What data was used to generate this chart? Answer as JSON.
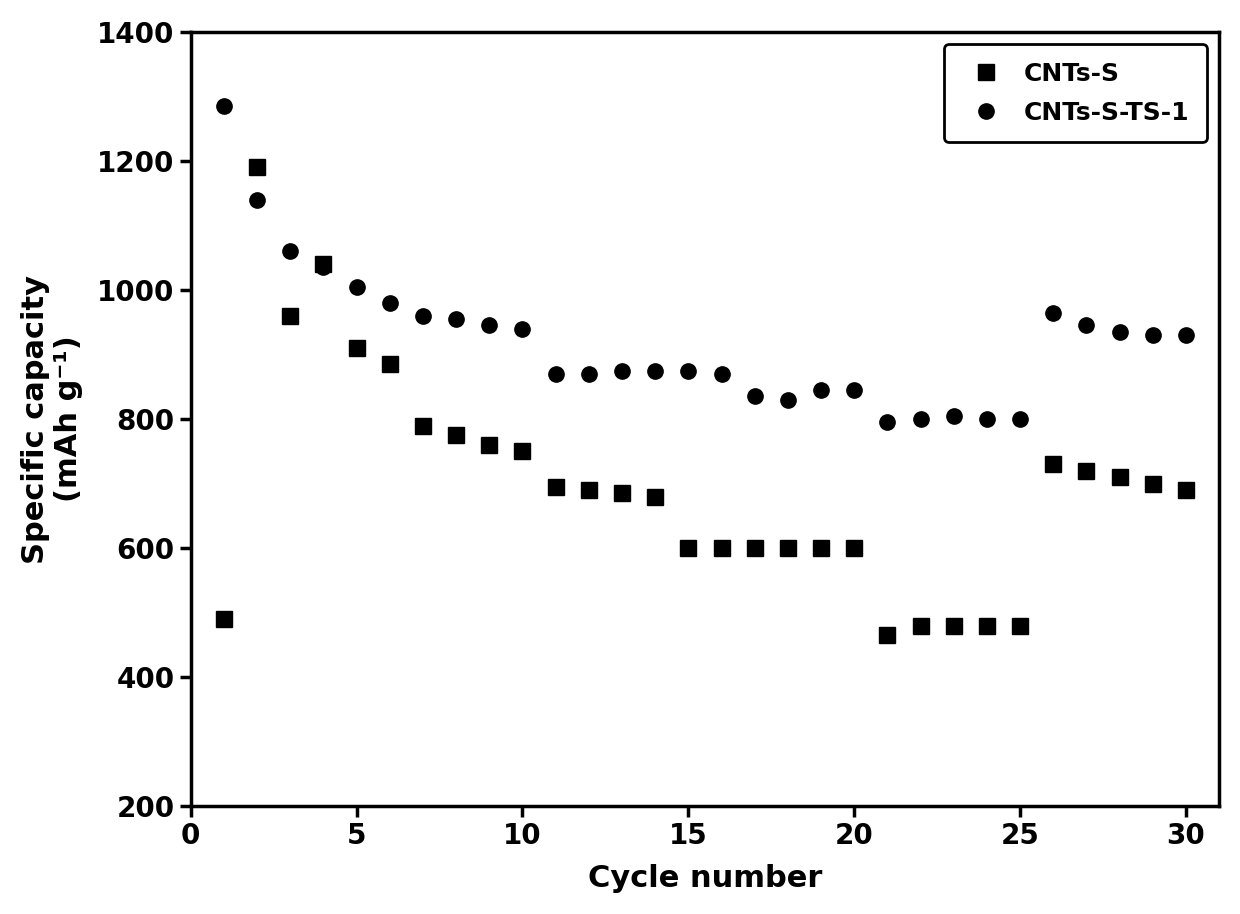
{
  "CNTs_S_x": [
    1,
    2,
    3,
    4,
    5,
    6,
    7,
    8,
    9,
    10,
    11,
    12,
    13,
    14,
    15,
    16,
    17,
    18,
    19,
    20,
    21,
    22,
    23,
    24,
    25,
    26,
    27,
    28,
    29,
    30
  ],
  "CNTs_S_y": [
    490,
    1190,
    960,
    1040,
    910,
    885,
    790,
    775,
    760,
    750,
    695,
    690,
    685,
    680,
    600,
    600,
    600,
    600,
    600,
    600,
    465,
    480,
    480,
    480,
    480,
    730,
    720,
    710,
    700,
    690
  ],
  "CNTs_S_TS1_x": [
    1,
    2,
    3,
    4,
    5,
    6,
    7,
    8,
    9,
    10,
    11,
    12,
    13,
    14,
    15,
    16,
    17,
    18,
    19,
    20,
    21,
    22,
    23,
    24,
    25,
    26,
    27,
    28,
    29,
    30
  ],
  "CNTs_S_TS1_y": [
    1285,
    1140,
    1060,
    1035,
    1005,
    980,
    960,
    955,
    945,
    940,
    870,
    870,
    875,
    875,
    875,
    870,
    835,
    830,
    845,
    845,
    795,
    800,
    805,
    800,
    800,
    965,
    945,
    935,
    930,
    930
  ],
  "ylabel_line1": "Specific capacity",
  "ylabel_line2": "(mAh g⁻¹)",
  "xlabel": "Cycle number",
  "ylim": [
    200,
    1400
  ],
  "xlim": [
    0,
    31
  ],
  "yticks": [
    200,
    400,
    600,
    800,
    1000,
    1200,
    1400
  ],
  "xticks": [
    0,
    5,
    10,
    15,
    20,
    25,
    30
  ],
  "label_CNTs_S": "CNTs-S",
  "label_CNTs_S_TS1": "CNTs-S-TS-1",
  "marker_square": "s",
  "marker_circle": "o",
  "color": "#000000",
  "markersize": 11,
  "label_fontsize": 22,
  "tick_fontsize": 20,
  "legend_fontsize": 18,
  "spine_linewidth": 2.5
}
